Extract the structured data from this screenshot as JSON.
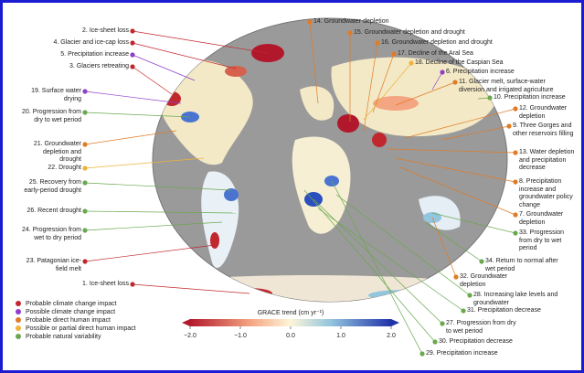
{
  "callouts": [
    {
      "text": "2. Ice-sheet loss",
      "color": "#c0282d"
    },
    {
      "text": "4. Glacier and ice-cap loss",
      "color": "#c0282d"
    },
    {
      "text": "5. Precipitation increase",
      "color": "#8e3fc8"
    },
    {
      "text": "3. Glaciers retreating",
      "color": "#c0282d"
    },
    {
      "text": "19. Surface water drying",
      "color": "#8e3fc8"
    },
    {
      "text": "20. Progression from dry to wet period",
      "color": "#6aa84f"
    },
    {
      "text": "21. Groundwater depletion and drought",
      "color": "#e07b26"
    },
    {
      "text": "22. Drought",
      "color": "#f0b33a"
    },
    {
      "text": "25. Recovery from early-period drought",
      "color": "#6aa84f"
    },
    {
      "text": "26. Recent drought",
      "color": "#6aa84f"
    },
    {
      "text": "24. Progression from wet to dry period",
      "color": "#6aa84f"
    },
    {
      "text": "23. Patagonian ice-field melt",
      "color": "#c0282d"
    },
    {
      "text": "1. Ice-sheet loss",
      "color": "#c0282d"
    },
    {
      "text": "14. Groundwater depletion",
      "color": "#e07b26"
    },
    {
      "text": "15. Groundwater depletion and drought",
      "color": "#e07b26"
    },
    {
      "text": "16. Groundwater depletion and drought",
      "color": "#e07b26"
    },
    {
      "text": "17. Decline of the Aral Sea",
      "color": "#e07b26"
    },
    {
      "text": "18. Decline of the Caspian Sea",
      "color": "#f0b33a"
    },
    {
      "text": "6. Precipitation increase",
      "color": "#8e3fc8"
    },
    {
      "text": "11. Glacier melt, surface-water diversion and irrigated agriculture",
      "color": "#e07b26"
    },
    {
      "text": "10. Precipitation increase",
      "color": "#6aa84f"
    },
    {
      "text": "12. Groundwater depletion",
      "color": "#e07b26"
    },
    {
      "text": "9. Three Gorges and other reservoirs filling",
      "color": "#e07b26"
    },
    {
      "text": "13. Water depletion and precipitation decrease",
      "color": "#e07b26"
    },
    {
      "text": "8. Precipitation increase and groundwater policy change",
      "color": "#e07b26"
    },
    {
      "text": "7. Groundwater depletion",
      "color": "#e07b26"
    },
    {
      "text": "33. Progression from dry to wet period",
      "color": "#6aa84f"
    },
    {
      "text": "34. Return to normal after wet period",
      "color": "#6aa84f"
    },
    {
      "text": "32. Groundwater depletion",
      "color": "#e07b26"
    },
    {
      "text": "28. Increasing lake levels and groundwater",
      "color": "#6aa84f"
    },
    {
      "text": "31. Precipitation decrease",
      "color": "#6aa84f"
    },
    {
      "text": "27. Progression from dry to wet period",
      "color": "#6aa84f"
    },
    {
      "text": "30. Precipitation decrease",
      "color": "#6aa84f"
    },
    {
      "text": "29. Precipitation increase",
      "color": "#6aa84f"
    }
  ],
  "legend": [
    {
      "text": "Probable climate change impact",
      "color": "#c0282d"
    },
    {
      "text": "Possible climate change impact",
      "color": "#8e3fc8"
    },
    {
      "text": "Probable direct human impact",
      "color": "#e07b26"
    },
    {
      "text": "Possible or partial direct human impact",
      "color": "#f0b33a"
    },
    {
      "text": "Probable natural variability",
      "color": "#6aa84f"
    }
  ],
  "colorbar": {
    "title": "GRACE trend (cm yr⁻¹)",
    "ticks": [
      {
        "value": -2,
        "label": "−2.0"
      },
      {
        "value": -1,
        "label": "−1.0"
      },
      {
        "value": 0,
        "label": "0.0"
      },
      {
        "value": 1,
        "label": "1.0"
      },
      {
        "value": 2,
        "label": "2.0"
      }
    ]
  }
}
